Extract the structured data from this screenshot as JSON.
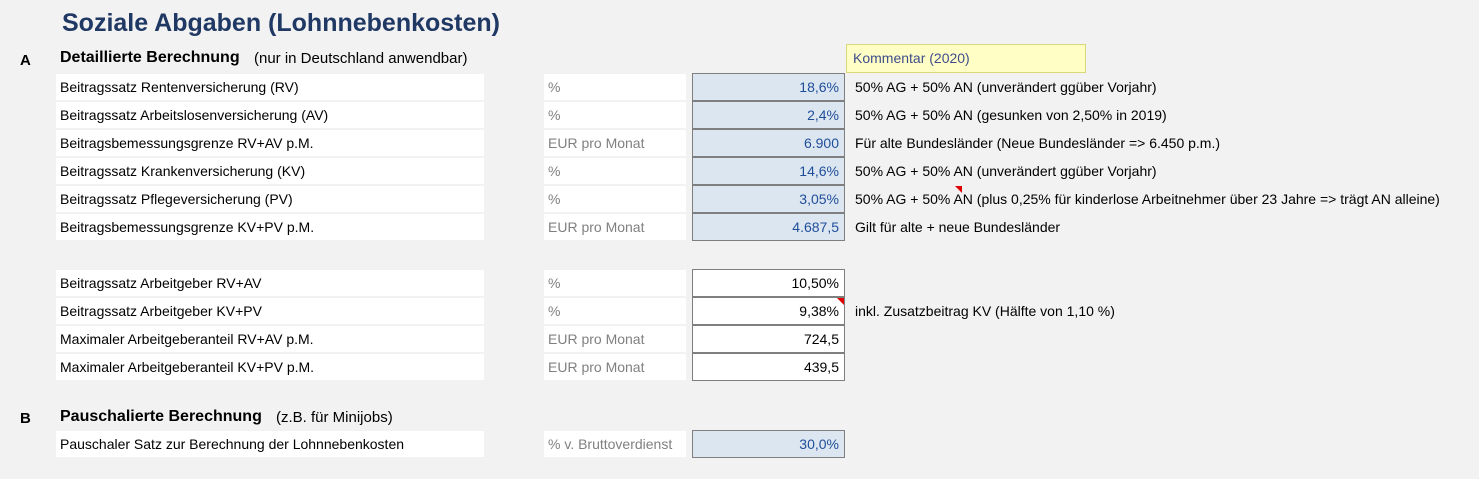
{
  "title": "Soziale Abgaben (Lohnnebenkosten)",
  "sectionA": {
    "letter": "A",
    "title": "Detaillierte Berechnung",
    "subtitle": "(nur in Deutschland anwendbar)",
    "comment_header": "Kommentar (2020)",
    "rows": [
      {
        "label": "Beitragssatz Rentenversicherung (RV)",
        "unit": "%",
        "value": "18,6%",
        "comment": "50% AG + 50% AN (unverändert ggüber Vorjahr)"
      },
      {
        "label": "Beitragssatz Arbeitslosenversicherung (AV)",
        "unit": "%",
        "value": "2,4%",
        "comment": "50% AG + 50% AN (gesunken von 2,50% in 2019)"
      },
      {
        "label": "Beitragsbemessungsgrenze RV+AV p.M.",
        "unit": "EUR pro Monat",
        "value": "6.900",
        "comment": "Für alte Bundesländer (Neue Bundesländer => 6.450 p.m.)"
      },
      {
        "label": "Beitragssatz Krankenversicherung (KV)",
        "unit": "%",
        "value": "14,6%",
        "comment": "50% AG + 50% AN (unverändert ggüber Vorjahr)"
      },
      {
        "label": "Beitragssatz Pflegeversicherung (PV)",
        "unit": "%",
        "value": "3,05%",
        "comment": "50% AG + 50% AN (plus 0,25% für kinderlose Arbeitnehmer über 23 Jahre => trägt AN alleine)"
      },
      {
        "label": "Beitragsbemessungsgrenze KV+PV p.M.",
        "unit": "EUR pro Monat",
        "value": "4.687,5",
        "comment": "Gilt für alte + neue Bundesländer"
      }
    ],
    "results": [
      {
        "label": "Beitragssatz Arbeitgeber RV+AV",
        "unit": "%",
        "value": "10,50%",
        "comment": ""
      },
      {
        "label": "Beitragssatz Arbeitgeber KV+PV",
        "unit": "%",
        "value": "9,38%",
        "comment": "inkl. Zusatzbeitrag KV (Hälfte von 1,10 %)"
      },
      {
        "label": "Maximaler Arbeitgeberanteil RV+AV p.M.",
        "unit": "EUR pro Monat",
        "value": "724,5",
        "comment": ""
      },
      {
        "label": "Maximaler Arbeitgeberanteil KV+PV p.M.",
        "unit": "EUR pro Monat",
        "value": "439,5",
        "comment": ""
      }
    ]
  },
  "sectionB": {
    "letter": "B",
    "title": "Pauschalierte Berechnung",
    "subtitle": "(z.B. für Minijobs)",
    "row": {
      "label": "Pauschaler Satz zur Berechnung der Lohnnebenkosten",
      "unit": "% v. Bruttoverdienst",
      "value": "30,0%"
    }
  }
}
